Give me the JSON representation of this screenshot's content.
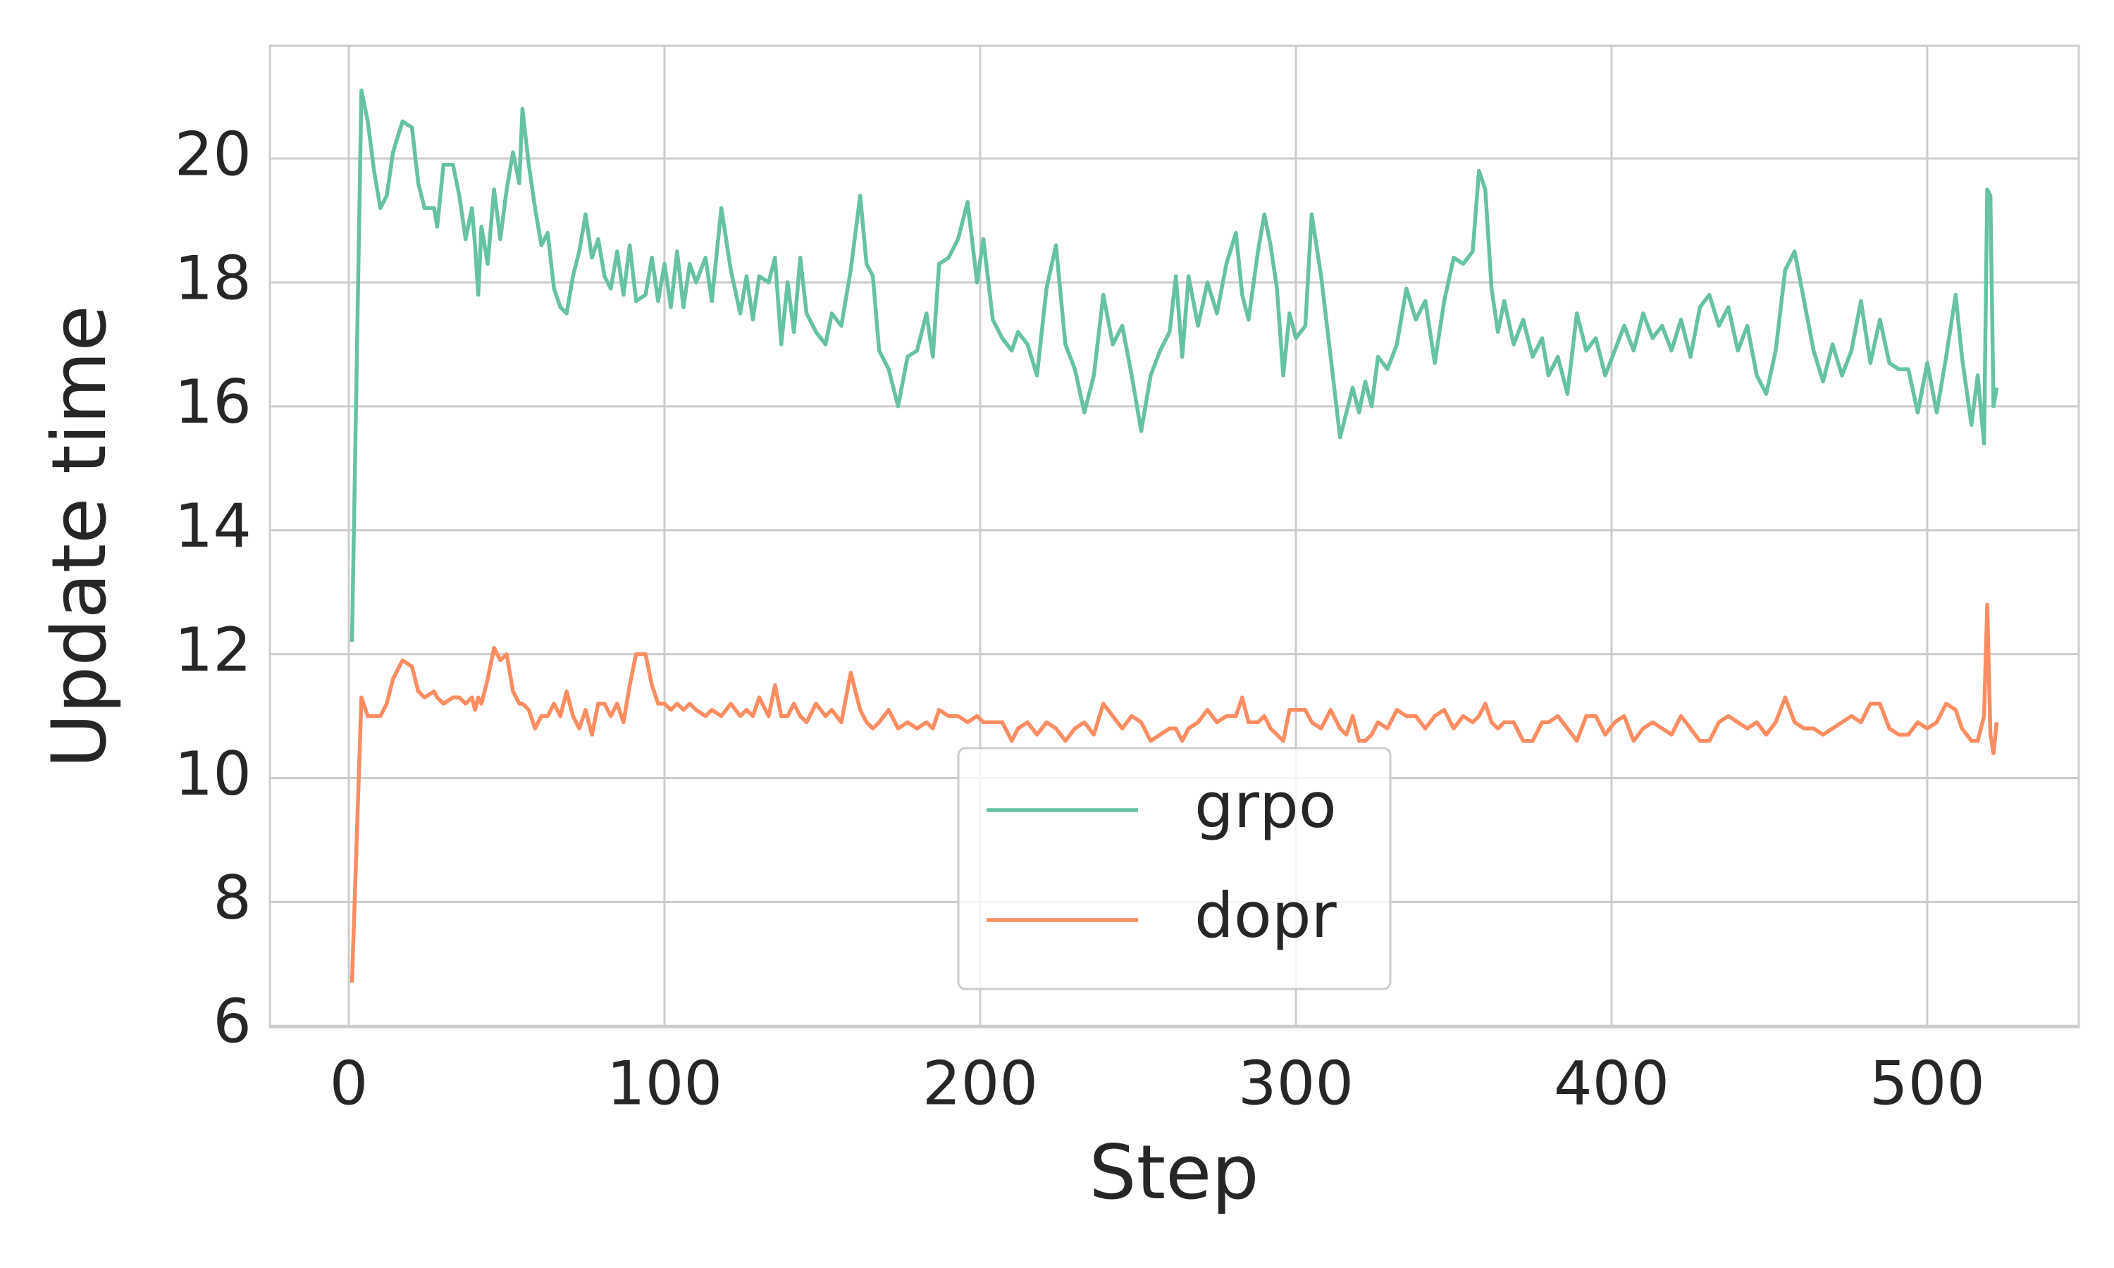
{
  "chart_data": {
    "type": "line",
    "xlabel": "Step",
    "ylabel": "Update time",
    "xlim": [
      -25,
      548
    ],
    "ylim": [
      5.98,
      21.82
    ],
    "xticks": [
      0,
      100,
      200,
      300,
      400,
      500
    ],
    "yticks": [
      6,
      8,
      10,
      12,
      14,
      16,
      18,
      20
    ],
    "grid": true,
    "legend": "lower center",
    "x": [
      1,
      4,
      6,
      8,
      10,
      12,
      14,
      17,
      20,
      22,
      24,
      27,
      28,
      30,
      33,
      35,
      37,
      39,
      40,
      41,
      42,
      44,
      46,
      48,
      50,
      52,
      54,
      55,
      57,
      59,
      61,
      63,
      65,
      67,
      69,
      71,
      73,
      75,
      77,
      79,
      81,
      83,
      85,
      87,
      89,
      91,
      94,
      96,
      98,
      100,
      102,
      104,
      106,
      108,
      110,
      113,
      115,
      118,
      121,
      124,
      126,
      128,
      130,
      133,
      135,
      137,
      139,
      141,
      143,
      145,
      148,
      151,
      153,
      156,
      159,
      162,
      164,
      166,
      168,
      171,
      174,
      177,
      180,
      183,
      185,
      187,
      190,
      193,
      196,
      199,
      201,
      204,
      207,
      210,
      212,
      215,
      218,
      221,
      224,
      227,
      230,
      233,
      236,
      239,
      242,
      245,
      248,
      251,
      254,
      257,
      260,
      262,
      264,
      266,
      269,
      272,
      275,
      278,
      281,
      283,
      285,
      288,
      290,
      292,
      294,
      296,
      298,
      300,
      303,
      305,
      308,
      311,
      314,
      316,
      318,
      320,
      322,
      324,
      326,
      329,
      332,
      335,
      338,
      341,
      344,
      347,
      350,
      353,
      356,
      358,
      360,
      362,
      364,
      366,
      369,
      372,
      375,
      378,
      380,
      383,
      386,
      389,
      392,
      395,
      398,
      401,
      404,
      407,
      410,
      413,
      416,
      419,
      422,
      425,
      428,
      431,
      434,
      437,
      440,
      443,
      446,
      449,
      452,
      455,
      458,
      461,
      464,
      467,
      470,
      473,
      476,
      479,
      482,
      485,
      488,
      491,
      494,
      497,
      500,
      503,
      506,
      509,
      511,
      514,
      516,
      518,
      519,
      520,
      521,
      522
    ],
    "series": [
      {
        "name": "grpo",
        "color": "#66c2a5",
        "values": [
          12.2,
          21.1,
          20.6,
          19.8,
          19.2,
          19.4,
          20.1,
          20.6,
          20.5,
          19.6,
          19.2,
          19.2,
          18.9,
          19.9,
          19.9,
          19.4,
          18.7,
          19.2,
          18.6,
          17.8,
          18.9,
          18.3,
          19.5,
          18.7,
          19.5,
          20.1,
          19.6,
          20.8,
          19.9,
          19.2,
          18.6,
          18.8,
          17.9,
          17.6,
          17.5,
          18.1,
          18.5,
          19.1,
          18.4,
          18.7,
          18.1,
          17.9,
          18.5,
          17.8,
          18.6,
          17.7,
          17.8,
          18.4,
          17.7,
          18.3,
          17.6,
          18.5,
          17.6,
          18.3,
          18.0,
          18.4,
          17.7,
          19.2,
          18.2,
          17.5,
          18.1,
          17.4,
          18.1,
          18.0,
          18.4,
          17.0,
          18.0,
          17.2,
          18.4,
          17.5,
          17.2,
          17.0,
          17.5,
          17.3,
          18.2,
          19.4,
          18.3,
          18.1,
          16.9,
          16.6,
          16.0,
          16.8,
          16.9,
          17.5,
          16.8,
          18.3,
          18.4,
          18.7,
          19.3,
          18.0,
          18.7,
          17.4,
          17.1,
          16.9,
          17.2,
          17.0,
          16.5,
          17.9,
          18.6,
          17.0,
          16.6,
          15.9,
          16.5,
          17.8,
          17.0,
          17.3,
          16.5,
          15.6,
          16.5,
          16.9,
          17.2,
          18.1,
          16.8,
          18.1,
          17.3,
          18.0,
          17.5,
          18.3,
          18.8,
          17.8,
          17.4,
          18.5,
          19.1,
          18.6,
          17.9,
          16.5,
          17.5,
          17.1,
          17.3,
          19.1,
          18.1,
          16.8,
          15.5,
          15.9,
          16.3,
          15.9,
          16.4,
          16.0,
          16.8,
          16.6,
          17.0,
          17.9,
          17.4,
          17.7,
          16.7,
          17.7,
          18.4,
          18.3,
          18.5,
          19.8,
          19.5,
          17.9,
          17.2,
          17.7,
          17.0,
          17.4,
          16.8,
          17.1,
          16.5,
          16.8,
          16.2,
          17.5,
          16.9,
          17.1,
          16.5,
          16.9,
          17.3,
          16.9,
          17.5,
          17.1,
          17.3,
          16.9,
          17.4,
          16.8,
          17.6,
          17.8,
          17.3,
          17.6,
          16.9,
          17.3,
          16.5,
          16.2,
          16.9,
          18.2,
          18.5,
          17.7,
          16.9,
          16.4,
          17.0,
          16.5,
          16.9,
          17.7,
          16.7,
          17.4,
          16.7,
          16.6,
          16.6,
          15.9,
          16.7,
          15.9,
          16.8,
          17.8,
          16.8,
          15.7,
          16.5,
          15.4,
          19.5,
          19.4,
          16.0,
          16.3
        ]
      },
      {
        "name": "dopr",
        "color": "#fc8d62",
        "values": [
          6.7,
          11.3,
          11.0,
          11.0,
          11.0,
          11.2,
          11.6,
          11.9,
          11.8,
          11.4,
          11.3,
          11.4,
          11.3,
          11.2,
          11.3,
          11.3,
          11.2,
          11.3,
          11.1,
          11.3,
          11.2,
          11.6,
          12.1,
          11.9,
          12.0,
          11.4,
          11.2,
          11.2,
          11.1,
          10.8,
          11.0,
          11.0,
          11.2,
          11.0,
          11.4,
          11.0,
          10.8,
          11.1,
          10.7,
          11.2,
          11.2,
          11.0,
          11.2,
          10.9,
          11.5,
          12.0,
          12.0,
          11.5,
          11.2,
          11.2,
          11.1,
          11.2,
          11.1,
          11.2,
          11.1,
          11.0,
          11.1,
          11.0,
          11.2,
          11.0,
          11.1,
          11.0,
          11.3,
          11.0,
          11.5,
          11.0,
          11.0,
          11.2,
          11.0,
          10.9,
          11.2,
          11.0,
          11.1,
          10.9,
          11.7,
          11.1,
          10.9,
          10.8,
          10.9,
          11.1,
          10.8,
          10.9,
          10.8,
          10.9,
          10.8,
          11.1,
          11.0,
          11.0,
          10.9,
          11.0,
          10.9,
          10.9,
          10.9,
          10.6,
          10.8,
          10.9,
          10.7,
          10.9,
          10.8,
          10.6,
          10.8,
          10.9,
          10.7,
          11.2,
          11.0,
          10.8,
          11.0,
          10.9,
          10.6,
          10.7,
          10.8,
          10.8,
          10.6,
          10.8,
          10.9,
          11.1,
          10.9,
          11.0,
          11.0,
          11.3,
          10.9,
          10.9,
          11.0,
          10.8,
          10.7,
          10.6,
          11.1,
          11.1,
          11.1,
          10.9,
          10.8,
          11.1,
          10.8,
          10.7,
          11.0,
          10.6,
          10.6,
          10.7,
          10.9,
          10.8,
          11.1,
          11.0,
          11.0,
          10.8,
          11.0,
          11.1,
          10.8,
          11.0,
          10.9,
          11.0,
          11.2,
          10.9,
          10.8,
          10.9,
          10.9,
          10.6,
          10.6,
          10.9,
          10.9,
          11.0,
          10.8,
          10.6,
          11.0,
          11.0,
          10.7,
          10.9,
          11.0,
          10.6,
          10.8,
          10.9,
          10.8,
          10.7,
          11.0,
          10.8,
          10.6,
          10.6,
          10.9,
          11.0,
          10.9,
          10.8,
          10.9,
          10.7,
          10.9,
          11.3,
          10.9,
          10.8,
          10.8,
          10.7,
          10.8,
          10.9,
          11.0,
          10.9,
          11.2,
          11.2,
          10.8,
          10.7,
          10.7,
          10.9,
          10.8,
          10.9,
          11.2,
          11.1,
          10.8,
          10.6,
          10.6,
          11.0,
          12.8,
          10.7,
          10.4,
          10.9
        ]
      }
    ]
  }
}
